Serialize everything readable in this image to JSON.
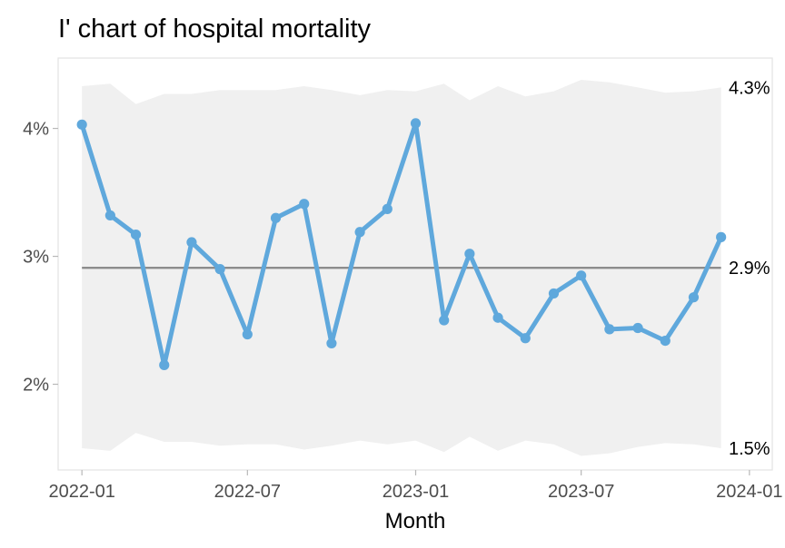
{
  "chart_data": {
    "type": "line",
    "title": "I' chart of hospital mortality",
    "xlabel": "Month",
    "ylabel": "",
    "x": [
      "2022-01",
      "2022-02",
      "2022-03",
      "2022-04",
      "2022-05",
      "2022-06",
      "2022-07",
      "2022-08",
      "2022-09",
      "2022-10",
      "2022-11",
      "2022-12",
      "2023-01",
      "2023-02",
      "2023-03",
      "2023-04",
      "2023-05",
      "2023-06",
      "2023-07",
      "2023-08",
      "2023-09",
      "2023-10",
      "2023-11",
      "2023-12"
    ],
    "series": [
      {
        "values": [
          4.03,
          3.32,
          3.17,
          2.15,
          3.11,
          2.9,
          2.39,
          3.3,
          3.41,
          2.32,
          3.19,
          3.37,
          4.04,
          2.5,
          3.02,
          2.52,
          2.36,
          2.71,
          2.85,
          2.43,
          2.44,
          2.34,
          2.68,
          3.15
        ],
        "color": "#5fa8dc"
      }
    ],
    "center_line": 2.91,
    "upper_limit": [
      4.33,
      4.35,
      4.19,
      4.27,
      4.27,
      4.3,
      4.3,
      4.3,
      4.33,
      4.3,
      4.26,
      4.3,
      4.29,
      4.35,
      4.22,
      4.33,
      4.25,
      4.29,
      4.38,
      4.36,
      4.32,
      4.28,
      4.29,
      4.32
    ],
    "lower_limit": [
      1.5,
      1.48,
      1.62,
      1.55,
      1.55,
      1.52,
      1.53,
      1.53,
      1.49,
      1.52,
      1.56,
      1.53,
      1.56,
      1.47,
      1.59,
      1.48,
      1.56,
      1.53,
      1.44,
      1.46,
      1.51,
      1.54,
      1.53,
      1.5
    ],
    "side_labels": {
      "upper": "4.3%",
      "center": "2.9%",
      "lower": "1.5%"
    },
    "yticks": [
      {
        "value": 2,
        "label": "2%"
      },
      {
        "value": 3,
        "label": "3%"
      },
      {
        "value": 4,
        "label": "4%"
      }
    ],
    "xticks": [
      {
        "value": "2022-01",
        "label": "2022-01"
      },
      {
        "value": "2022-07",
        "label": "2022-07"
      },
      {
        "value": "2023-01",
        "label": "2023-01"
      },
      {
        "value": "2023-07",
        "label": "2023-07"
      },
      {
        "value": "2024-01",
        "label": "2024-01"
      }
    ],
    "xlim": [
      "2021-12-06",
      "2024-01-26"
    ],
    "ylim": [
      1.33,
      4.55
    ],
    "grid": false,
    "legend": "none",
    "colors": {
      "line": "#5fa8dc",
      "center": "#8c8c8c",
      "band": "#f0f0f0",
      "panel_border": "#e3e3e3",
      "axis_ticks": "#b8b8b8"
    }
  }
}
